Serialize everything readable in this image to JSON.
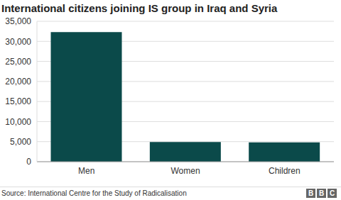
{
  "chart_data": {
    "type": "bar",
    "title": "International citizens joining IS group in Iraq and Syria",
    "categories": [
      "Men",
      "Women",
      "Children"
    ],
    "values": [
      32300,
      4900,
      4800
    ],
    "color": "#0b4a4a",
    "ylim": [
      0,
      35000
    ],
    "yticks": [
      0,
      {
        "value": 5000,
        "label": "5,000"
      },
      {
        "value": 10000,
        "label": "10,000"
      },
      {
        "value": 15000,
        "label": "15,000"
      },
      {
        "value": 20000,
        "label": "20,000"
      },
      {
        "value": 25000,
        "label": "25,000"
      },
      {
        "value": 30000,
        "label": "30,000"
      },
      {
        "value": 35000,
        "label": "35,000"
      }
    ],
    "grid": true,
    "source": "Source: International Centre for the Study of Radicalisation",
    "logo": "BBC"
  }
}
